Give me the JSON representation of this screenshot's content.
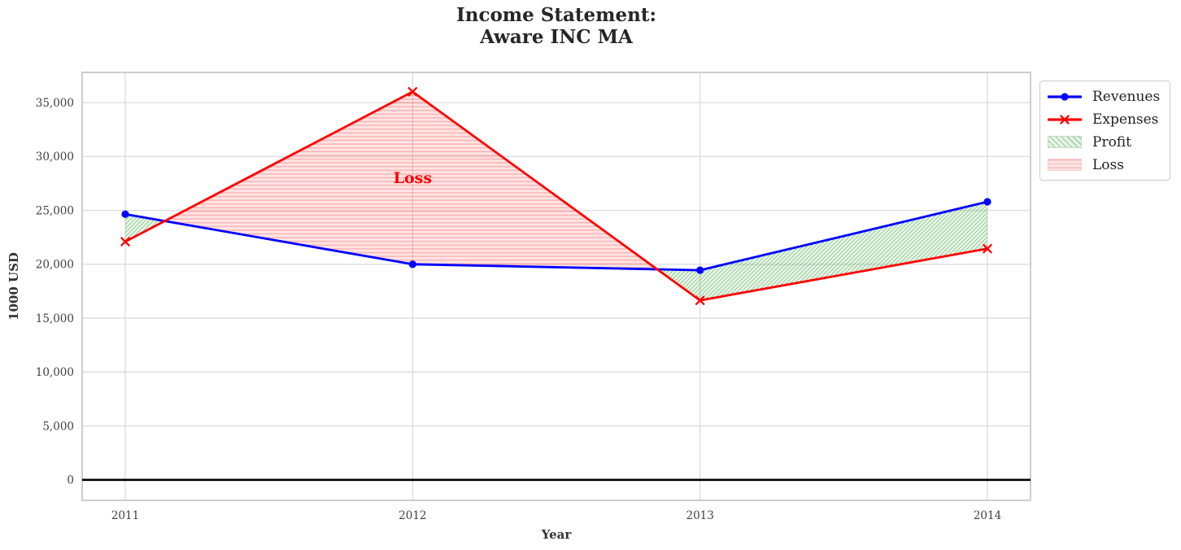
{
  "chart_data": {
    "type": "line",
    "title": "Income Statement:\nAware INC MA",
    "title_lines": [
      "Income Statement:",
      "Aware INC MA"
    ],
    "xlabel": "Year",
    "ylabel": "1000 USD",
    "x": [
      2011,
      2012,
      2013,
      2014
    ],
    "x_tick_labels": [
      "2011",
      "2012",
      "2013",
      "2014"
    ],
    "y_ticks": [
      0,
      5000,
      10000,
      15000,
      20000,
      25000,
      30000,
      35000
    ],
    "y_tick_labels": [
      "0",
      "5,000",
      "10,000",
      "15,000",
      "20,000",
      "25,000",
      "30,000",
      "35,000"
    ],
    "xlim": [
      2010.85,
      2014.15
    ],
    "ylim": [
      -1900,
      37800
    ],
    "grid": true,
    "zero_line": true,
    "series": [
      {
        "name": "Revenues",
        "values": [
          24650,
          20000,
          19450,
          25800
        ],
        "color": "#0000ff",
        "marker": "circle"
      },
      {
        "name": "Expenses",
        "values": [
          22100,
          36000,
          16650,
          21450
        ],
        "color": "#ff0000",
        "marker": "x"
      }
    ],
    "fills": [
      {
        "name": "Profit",
        "condition": "Revenues > Expenses",
        "base_color": "rgba(50,155,50,0.10)",
        "hatch": "diagonal",
        "hatch_color": "rgba(70,165,70,0.50)"
      },
      {
        "name": "Loss",
        "condition": "Expenses > Revenues",
        "base_color": "rgba(255,45,45,0.12)",
        "hatch": "horizontal",
        "hatch_color": "rgba(255,90,90,0.36)"
      }
    ],
    "annotations": [
      {
        "text": "Loss",
        "x": 2012,
        "y": 28000,
        "color": "#ff0000"
      }
    ],
    "legend": {
      "position": "outside-top-right",
      "entries": [
        {
          "label": "Revenues",
          "swatch": "line",
          "marker": "circle",
          "color": "#0000ff"
        },
        {
          "label": "Expenses",
          "swatch": "line",
          "marker": "x",
          "color": "#ff0000"
        },
        {
          "label": "Profit",
          "swatch": "patch",
          "hatch": "diagonal"
        },
        {
          "label": "Loss",
          "swatch": "patch",
          "hatch": "horizontal"
        }
      ]
    },
    "colors": {
      "grid": "#dbdbdb",
      "spine": "#c8c8c8",
      "tick_label": "#3f3f3f",
      "title": "#262626",
      "zero_line": "#000000"
    }
  }
}
